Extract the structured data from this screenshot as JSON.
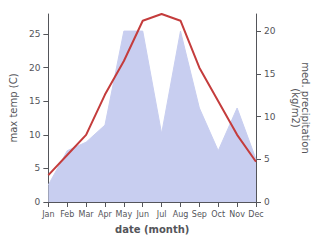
{
  "chart_data": {
    "type": "line",
    "categories": [
      "Jan",
      "Feb",
      "Mar",
      "Apr",
      "May",
      "Jun",
      "Jul",
      "Aug",
      "Sep",
      "Oct",
      "Nov",
      "Dec"
    ],
    "xlabel": "date (month)",
    "ylabel": "max temp (C)",
    "y2label": "med. precipitation\n(kg/m2)",
    "ylim": [
      0,
      28
    ],
    "yticks": [
      0,
      5,
      10,
      15,
      20,
      25
    ],
    "y2lim": [
      0,
      22
    ],
    "y2ticks": [
      0,
      5,
      10,
      15,
      20
    ],
    "grid": false,
    "series": [
      {
        "type": "area",
        "color": "#c8cef0",
        "values": [
          2,
          6,
          7,
          9,
          20,
          20,
          8,
          20,
          11,
          6,
          11,
          5
        ],
        "axis": "y2"
      },
      {
        "type": "line",
        "color": "#c43c3c",
        "values": [
          4,
          7,
          10,
          16,
          21,
          27,
          28,
          27,
          20,
          15,
          10,
          6
        ]
      }
    ]
  }
}
